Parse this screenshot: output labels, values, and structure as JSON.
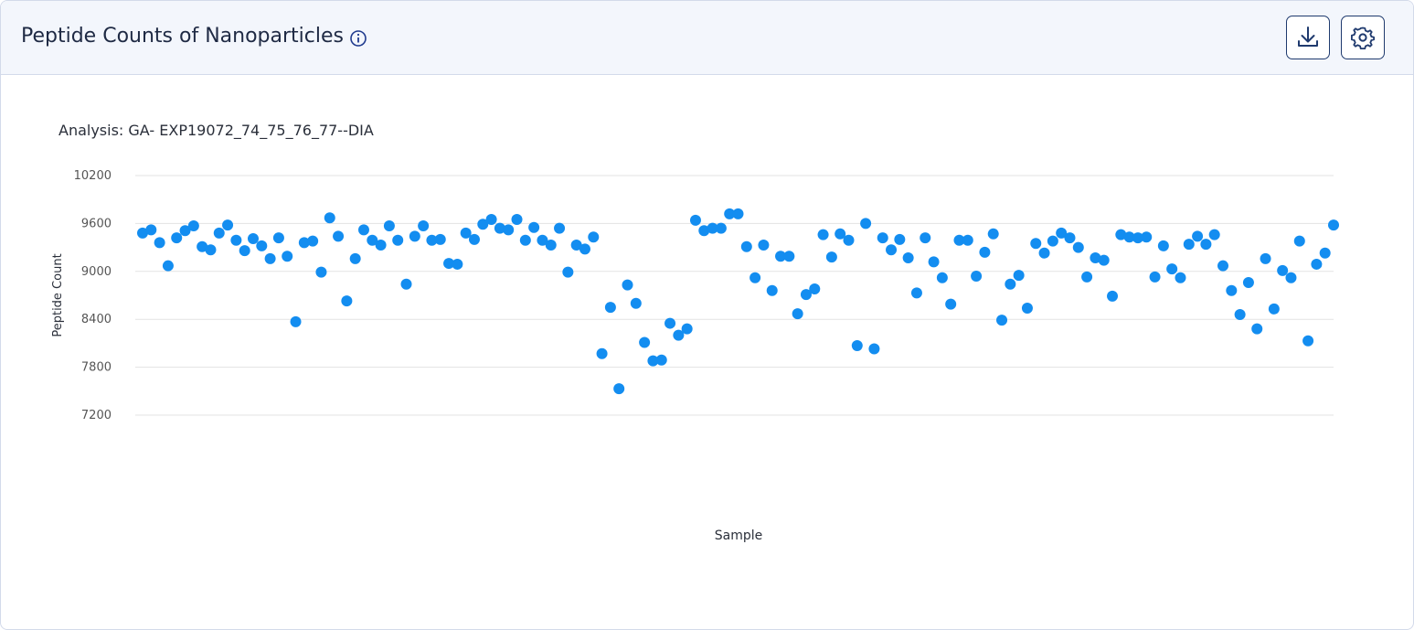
{
  "chart_data": {
    "type": "scatter",
    "title": "Peptide Counts of Nanoparticles",
    "subtitle": "Analysis: GA- EXP19072_74_75_76_77--DIA",
    "x_label": "Sample",
    "y_label": "Peptide Count",
    "color": "#138df0",
    "grid": true,
    "ylim": [
      7200,
      10200
    ],
    "yticks": [
      7200,
      7800,
      8400,
      9000,
      9600,
      10200
    ],
    "categories": [
      null,
      null,
      null,
      null,
      null,
      null,
      null,
      null,
      null,
      null,
      null,
      null,
      null,
      null,
      null,
      null,
      null,
      null,
      null,
      null,
      null,
      null,
      null,
      null,
      null,
      null,
      null,
      null,
      null,
      null,
      null,
      null,
      null,
      null,
      null,
      null,
      null,
      null,
      null,
      null,
      null,
      null,
      null,
      null,
      null,
      null,
      null,
      null,
      null,
      null,
      null,
      null,
      null,
      null,
      null,
      null,
      null,
      null,
      null,
      null,
      null,
      null,
      null,
      null,
      null,
      null,
      null,
      null,
      null,
      null,
      null,
      null,
      null,
      null,
      null,
      null,
      null,
      null,
      null,
      null,
      null,
      null,
      null,
      null,
      null,
      null,
      null,
      null,
      null,
      null,
      null,
      null,
      null,
      null,
      null,
      null,
      null,
      null,
      null,
      null,
      null,
      null,
      null,
      null,
      null,
      null,
      null,
      null,
      null,
      null,
      null,
      null,
      null,
      null,
      null,
      null,
      null,
      null,
      null,
      null,
      null,
      null,
      null,
      null,
      null,
      null,
      null,
      null,
      null,
      null,
      null,
      null,
      null,
      null,
      null,
      null,
      null,
      null,
      null,
      null,
      null
    ],
    "values": [
      9480,
      9520,
      9360,
      9070,
      9420,
      9510,
      9570,
      9310,
      9270,
      9480,
      9580,
      9390,
      9260,
      9410,
      9320,
      9160,
      9420,
      9190,
      8370,
      9360,
      9380,
      8990,
      9670,
      9440,
      8630,
      9160,
      9520,
      9390,
      9330,
      9570,
      9390,
      8840,
      9440,
      9570,
      9390,
      9400,
      9100,
      9090,
      9480,
      9400,
      9590,
      9650,
      9540,
      9520,
      9650,
      9390,
      9550,
      9390,
      9330,
      9540,
      8990,
      9330,
      9280,
      9430,
      7970,
      8550,
      7530,
      8830,
      8600,
      8110,
      7880,
      7890,
      8350,
      8200,
      8280,
      9640,
      9510,
      9540,
      9540,
      9720,
      9720,
      9310,
      8920,
      9330,
      8760,
      9190,
      9190,
      8470,
      8710,
      8780,
      9460,
      9180,
      9470,
      9390,
      8070,
      9600,
      8030,
      9420,
      9270,
      9400,
      9170,
      8730,
      9420,
      9120,
      8920,
      8590,
      9390,
      9390,
      8940,
      9240,
      9470,
      8390,
      8840,
      8950,
      8540,
      9350,
      9230,
      9380,
      9480,
      9420,
      9300,
      8930,
      9170,
      9140,
      8690,
      9460,
      9430,
      9420,
      9430,
      8930,
      9320,
      9030,
      8920,
      9340,
      9440,
      9340,
      9460,
      9070,
      8760,
      8460,
      8860,
      8280,
      9160,
      8530,
      9010,
      8920,
      9380,
      8130,
      9090,
      9230,
      9580
    ]
  }
}
